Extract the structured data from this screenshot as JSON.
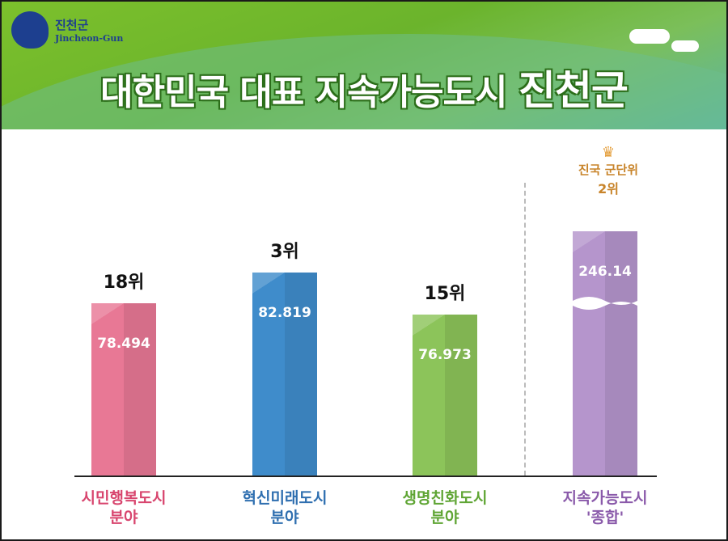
{
  "header": {
    "logo_ko": "진천군",
    "logo_en": "Jincheon-Gun",
    "logo_emblem": "진천",
    "title_main": "대한민국 대표 지속가능도시",
    "title_highlight": "진천군"
  },
  "badge": {
    "line1": "진국 군단위",
    "line2": "2위",
    "icon": "crown-laurel-icon"
  },
  "chart_data": {
    "type": "bar",
    "categories": [
      "시민행복도시 분야",
      "혁신미래도시 분야",
      "생명친화도시 분야",
      "지속가능도시 '종합'"
    ],
    "category_lines": [
      [
        "시민행복도시",
        "분야"
      ],
      [
        "혁신미래도시",
        "분야"
      ],
      [
        "생명친화도시",
        "분야"
      ],
      [
        "지속가능도시",
        "'종합'"
      ]
    ],
    "values": [
      78.494,
      82.819,
      76.973,
      246.14
    ],
    "value_labels": [
      "78.494",
      "82.819",
      "76.973",
      "246.14"
    ],
    "ranks": [
      "18위",
      "3위",
      "15위",
      ""
    ],
    "broken_axis_on": [
      false,
      false,
      false,
      true
    ],
    "colors": [
      "#e87895",
      "#3f8ccb",
      "#8cc45a",
      "#b595cc"
    ],
    "label_colors": [
      "#d8456e",
      "#2f6fb0",
      "#5fa534",
      "#8a5aaa"
    ],
    "axis_break": true,
    "grid": false
  }
}
